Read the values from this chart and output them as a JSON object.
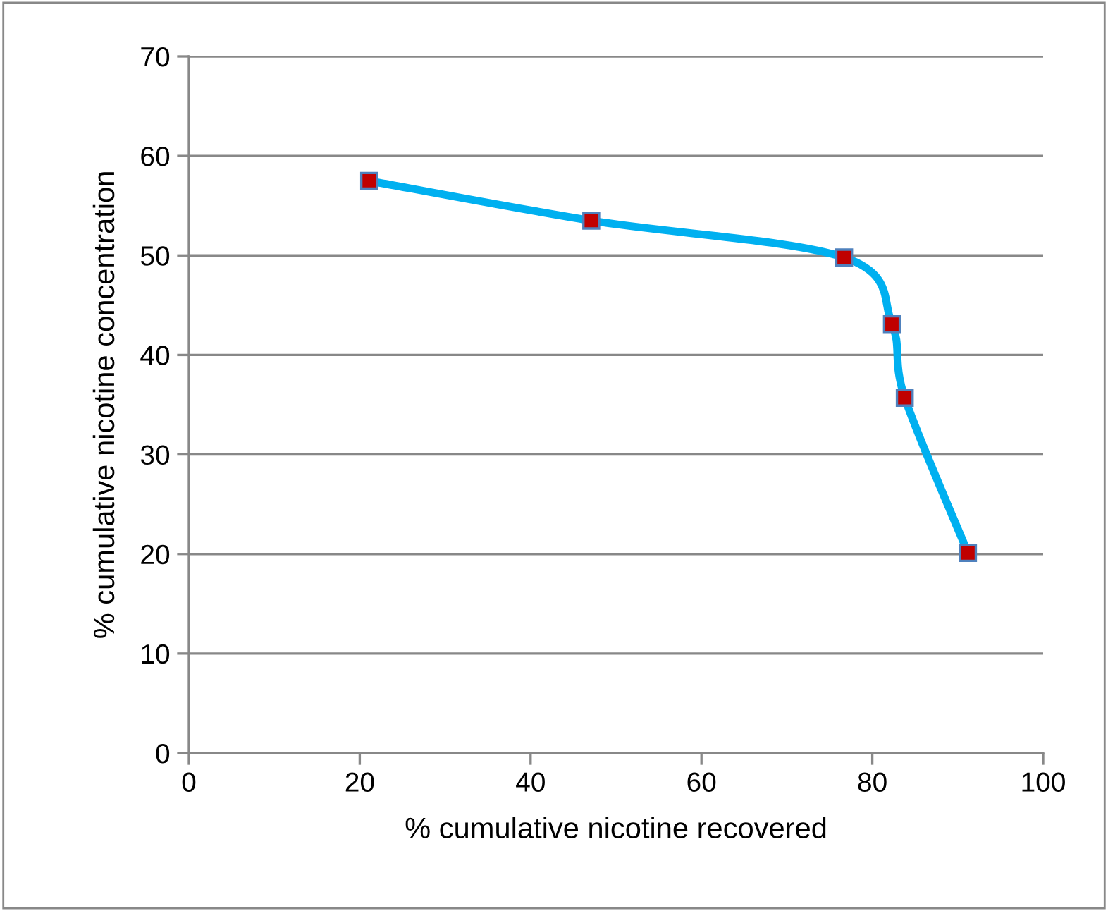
{
  "chart_data": {
    "type": "line",
    "xlabel": "% cumulative nicotine recovered",
    "ylabel": "% cumulative nicotine concentration",
    "x": [
      21.1,
      47.1,
      76.7,
      82.3,
      83.8,
      91.2
    ],
    "series": [
      {
        "color": "#00b0f0",
        "values": [
          57.5,
          53.5,
          49.8,
          43.1,
          35.7,
          20.1
        ]
      }
    ],
    "marker": "square",
    "line_style": "solid",
    "grid": "y",
    "xlim": [
      0,
      100
    ],
    "xticks": [
      0,
      20,
      40,
      60,
      80,
      100
    ],
    "ylim": [
      0,
      70
    ],
    "yticks": [
      0,
      10,
      20,
      30,
      40,
      50,
      60,
      70
    ]
  }
}
